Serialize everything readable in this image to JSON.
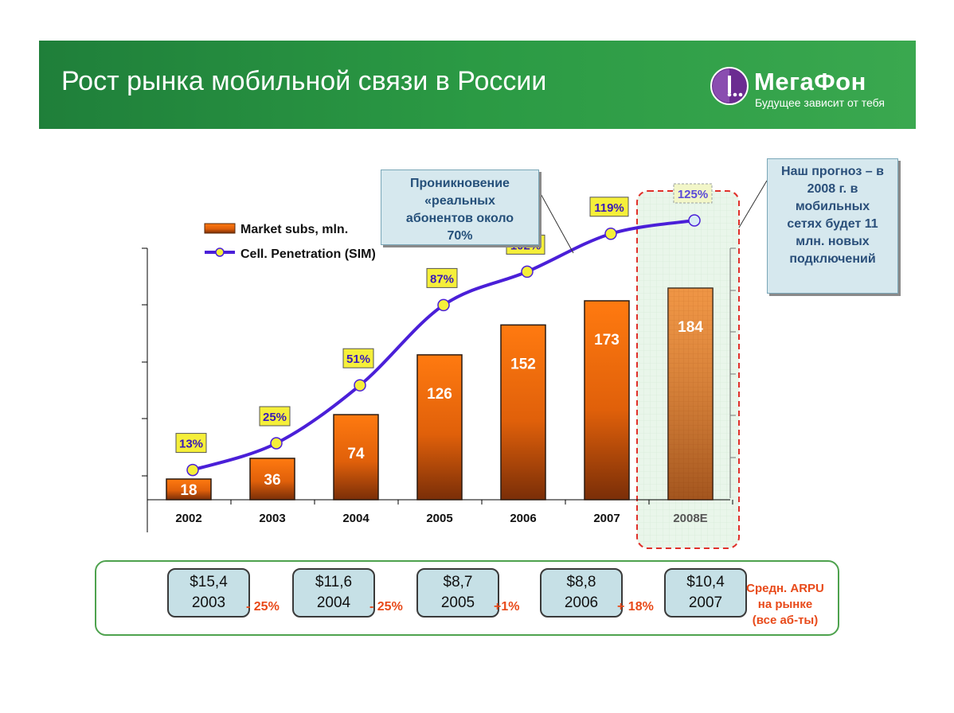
{
  "header": {
    "title": "Рост рынка мобильной связи в России",
    "logo_name": "МегаФон",
    "logo_slogan": "Будущее зависит от тебя",
    "background_color": "#2b9a44",
    "logo_icon": "megafon-logo-icon"
  },
  "chart_data": {
    "type": "bar",
    "categories": [
      "2002",
      "2003",
      "2004",
      "2005",
      "2006",
      "2007",
      "2008E"
    ],
    "series": [
      {
        "name": "Market subs, mln.",
        "kind": "bar",
        "values": [
          18,
          36,
          74,
          126,
          152,
          173,
          184
        ],
        "color": "#e8650a"
      },
      {
        "name": "Cell. Penetration (SIM)",
        "kind": "line",
        "values": [
          13,
          25,
          51,
          87,
          102,
          119,
          125
        ],
        "labels": [
          "13%",
          "25%",
          "51%",
          "87%",
          "102%",
          "119%",
          "125%"
        ],
        "color": "#4a1fd8",
        "marker_color": "#f5ef3a"
      }
    ],
    "forecast_category": "2008E",
    "grid": false,
    "legend_position": "top-left"
  },
  "callouts": {
    "penetration": [
      "Проникновение",
      "«реальных",
      "абонентов около",
      "70%"
    ],
    "forecast": [
      "Наш прогноз – в",
      "2008 г. в",
      "мобильных",
      "сетях будет 11",
      "млн. новых",
      "подключений"
    ]
  },
  "arpu": {
    "items": [
      {
        "value": "$15,4",
        "year": "2003"
      },
      {
        "value": "$11,6",
        "year": "2004"
      },
      {
        "value": "$8,7",
        "year": "2005"
      },
      {
        "value": "$8,8",
        "year": "2006"
      },
      {
        "value": "$10,4",
        "year": "2007"
      }
    ],
    "changes": [
      "- 25%",
      "- 25%",
      "+1%",
      "+ 18%"
    ],
    "label": [
      "Средн. ARPU",
      "на рынке",
      "(все аб-ты)"
    ]
  }
}
